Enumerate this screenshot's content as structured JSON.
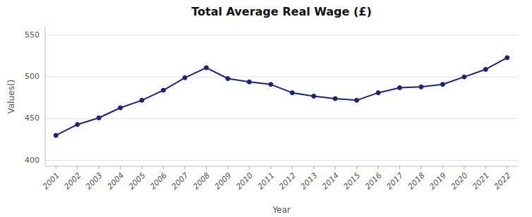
{
  "chart_data": {
    "type": "line",
    "title": "Total Average Real Wage (£)",
    "x_label": "Year",
    "y_label": "Values()",
    "x": [
      2001,
      2002,
      2003,
      2004,
      2005,
      2006,
      2007,
      2008,
      2009,
      2010,
      2011,
      2012,
      2013,
      2014,
      2015,
      2016,
      2017,
      2018,
      2019,
      2020,
      2021,
      2022
    ],
    "values": [
      430,
      443,
      451,
      463,
      472,
      484,
      499,
      511,
      498,
      494,
      491,
      481,
      477,
      474,
      472,
      481,
      487,
      488,
      491,
      500,
      509,
      523
    ],
    "color": "#1a237e",
    "marker": "circle",
    "xlim": [
      2000.5,
      2022.5
    ],
    "xticks": [
      2001,
      2002,
      2003,
      2004,
      2005,
      2006,
      2007,
      2008,
      2009,
      2010,
      2011,
      2012,
      2013,
      2014,
      2015,
      2016,
      2017,
      2018,
      2019,
      2020,
      2021,
      2022
    ],
    "ylim": [
      393,
      560
    ],
    "yticks": [
      400,
      450,
      500,
      550
    ],
    "grid": "y"
  }
}
